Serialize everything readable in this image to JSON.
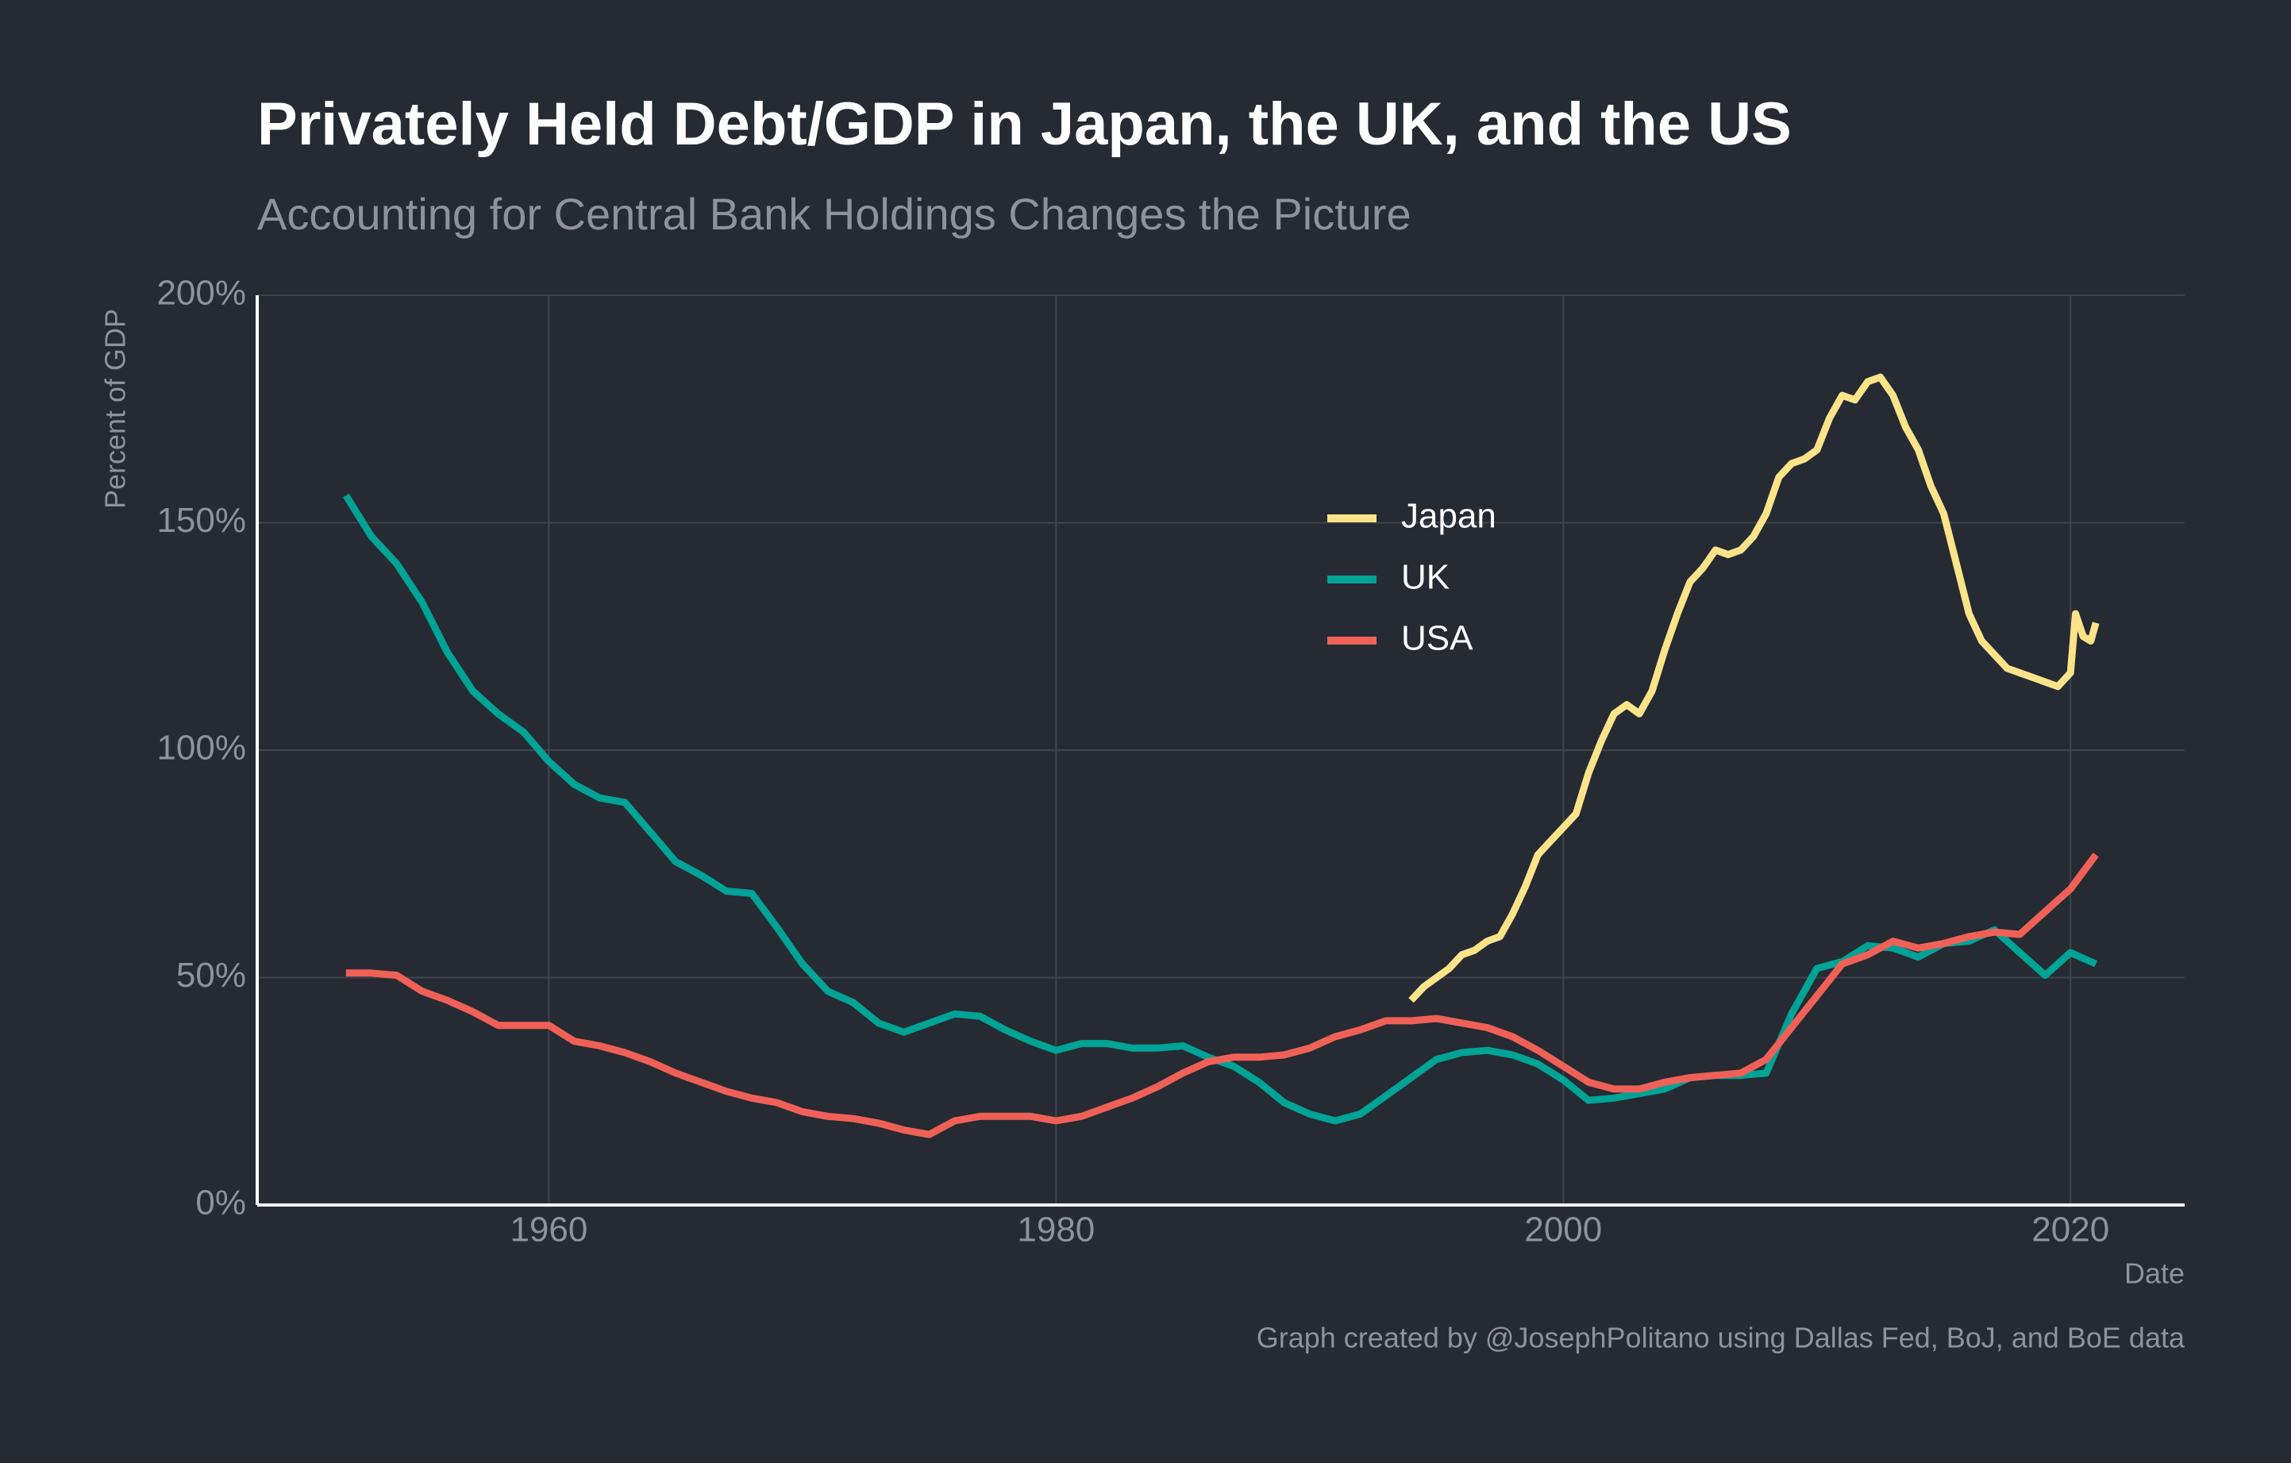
{
  "chart_data": {
    "type": "line",
    "title": "Privately Held Debt/GDP in Japan, the UK, and the US",
    "subtitle": "Accounting for Central Bank Holdings Changes the Picture",
    "y_label": "Percent of GDP",
    "x_label": "Date",
    "caption": "Graph created by @JosephPolitano using Dallas Fed, BoJ, and BoE data",
    "xlim": [
      1948.5,
      2024.5
    ],
    "xticks": [
      1960,
      1980,
      2000,
      2020
    ],
    "ylim": [
      0,
      200
    ],
    "yticks": [
      {
        "value": 0,
        "label": "0%"
      },
      {
        "value": 50,
        "label": "50%"
      },
      {
        "value": 100,
        "label": "100%"
      },
      {
        "value": 150,
        "label": "150%"
      },
      {
        "value": 200,
        "label": "200%"
      }
    ],
    "grid": true,
    "series": [
      {
        "name": "Japan",
        "color": "#fbe38a",
        "x": [
          1994,
          1994.5,
          1995,
          1995.5,
          1996,
          1996.5,
          1997,
          1997.5,
          1998,
          1998.5,
          1999,
          1999.5,
          2000,
          2000.5,
          2001,
          2001.5,
          2002,
          2002.5,
          2003,
          2003.5,
          2004,
          2004.5,
          2005,
          2005.5,
          2006,
          2006.5,
          2007,
          2007.5,
          2008,
          2008.5,
          2009,
          2009.5,
          2010,
          2010.5,
          2011,
          2011.5,
          2012,
          2012.5,
          2013,
          2013.5,
          2014,
          2014.5,
          2015,
          2015.5,
          2016,
          2016.5,
          2017,
          2017.5,
          2018,
          2018.5,
          2019,
          2019.5,
          2020,
          2020.2,
          2020.5,
          2020.8,
          2021
        ],
        "values": [
          45,
          48,
          50,
          52,
          55,
          56,
          58,
          59,
          64,
          70,
          77,
          80,
          83,
          86,
          95,
          102,
          108,
          110,
          108,
          113,
          122,
          130,
          137,
          140,
          144,
          143,
          144,
          147,
          152,
          160,
          163,
          164,
          166,
          173,
          178,
          177,
          181,
          182,
          178,
          171,
          166,
          158,
          152,
          141,
          130,
          124,
          121,
          118,
          117,
          116,
          115,
          114,
          117,
          130,
          125,
          124,
          128
        ]
      },
      {
        "name": "UK",
        "color": "#00a395",
        "x": [
          1952,
          1953,
          1954,
          1955,
          1956,
          1957,
          1958,
          1959,
          1960,
          1961,
          1962,
          1963,
          1964,
          1965,
          1966,
          1967,
          1968,
          1969,
          1970,
          1971,
          1972,
          1973,
          1974,
          1975,
          1976,
          1977,
          1978,
          1979,
          1980,
          1981,
          1982,
          1983,
          1984,
          1985,
          1986,
          1987,
          1988,
          1989,
          1990,
          1991,
          1992,
          1993,
          1994,
          1995,
          1996,
          1997,
          1998,
          1999,
          2000,
          2001,
          2002,
          2003,
          2004,
          2005,
          2006,
          2007,
          2008,
          2009,
          2010,
          2011,
          2012,
          2013,
          2014,
          2015,
          2016,
          2017,
          2018,
          2019,
          2020,
          2021
        ],
        "values": [
          156,
          147,
          141,
          132.5,
          121.5,
          113,
          108,
          104,
          97.5,
          92.5,
          89.5,
          88.5,
          82,
          75.5,
          72.5,
          69,
          68.5,
          61,
          53,
          47,
          44.5,
          40,
          38,
          40,
          42,
          41.5,
          38.5,
          36,
          34,
          35.5,
          35.5,
          34.5,
          34.5,
          35,
          32.5,
          30.5,
          27,
          22.5,
          20,
          18.5,
          20,
          24,
          28,
          32,
          33.5,
          34,
          33,
          31,
          27.5,
          23,
          23.5,
          24.5,
          25.5,
          28,
          28.5,
          28.5,
          29,
          42,
          52,
          53.5,
          57,
          56.5,
          54.5,
          57.5,
          58,
          60.5,
          55.5,
          50.5,
          55.5,
          53
        ]
      },
      {
        "name": "USA",
        "color": "#ef6157",
        "x": [
          1952,
          1953,
          1954,
          1955,
          1956,
          1957,
          1958,
          1959,
          1960,
          1961,
          1962,
          1963,
          1964,
          1965,
          1966,
          1967,
          1968,
          1969,
          1970,
          1971,
          1972,
          1973,
          1974,
          1975,
          1976,
          1977,
          1978,
          1979,
          1980,
          1981,
          1982,
          1983,
          1984,
          1985,
          1986,
          1987,
          1988,
          1989,
          1990,
          1991,
          1992,
          1993,
          1994,
          1995,
          1996,
          1997,
          1998,
          1999,
          2000,
          2001,
          2002,
          2003,
          2004,
          2005,
          2006,
          2007,
          2008,
          2009,
          2010,
          2011,
          2012,
          2013,
          2014,
          2015,
          2016,
          2017,
          2018,
          2019,
          2020,
          2021
        ],
        "values": [
          51,
          51,
          50.5,
          47,
          45,
          42.5,
          39.5,
          39.5,
          39.5,
          36,
          35,
          33.5,
          31.5,
          29,
          27,
          25,
          23.5,
          22.5,
          20.5,
          19.5,
          19,
          18,
          16.5,
          15.5,
          18.5,
          19.5,
          19.5,
          19.5,
          18.5,
          19.5,
          21.5,
          23.5,
          26,
          29,
          31.5,
          32.5,
          32.5,
          33,
          34.5,
          37,
          38.5,
          40.5,
          40.5,
          41,
          40,
          39,
          37,
          34,
          30.5,
          27,
          25.5,
          25.5,
          27,
          28,
          28.5,
          29,
          32,
          39,
          46,
          53,
          55,
          58,
          56.5,
          57.5,
          59,
          60,
          59.5,
          64.5,
          69.5,
          77
        ]
      }
    ]
  }
}
